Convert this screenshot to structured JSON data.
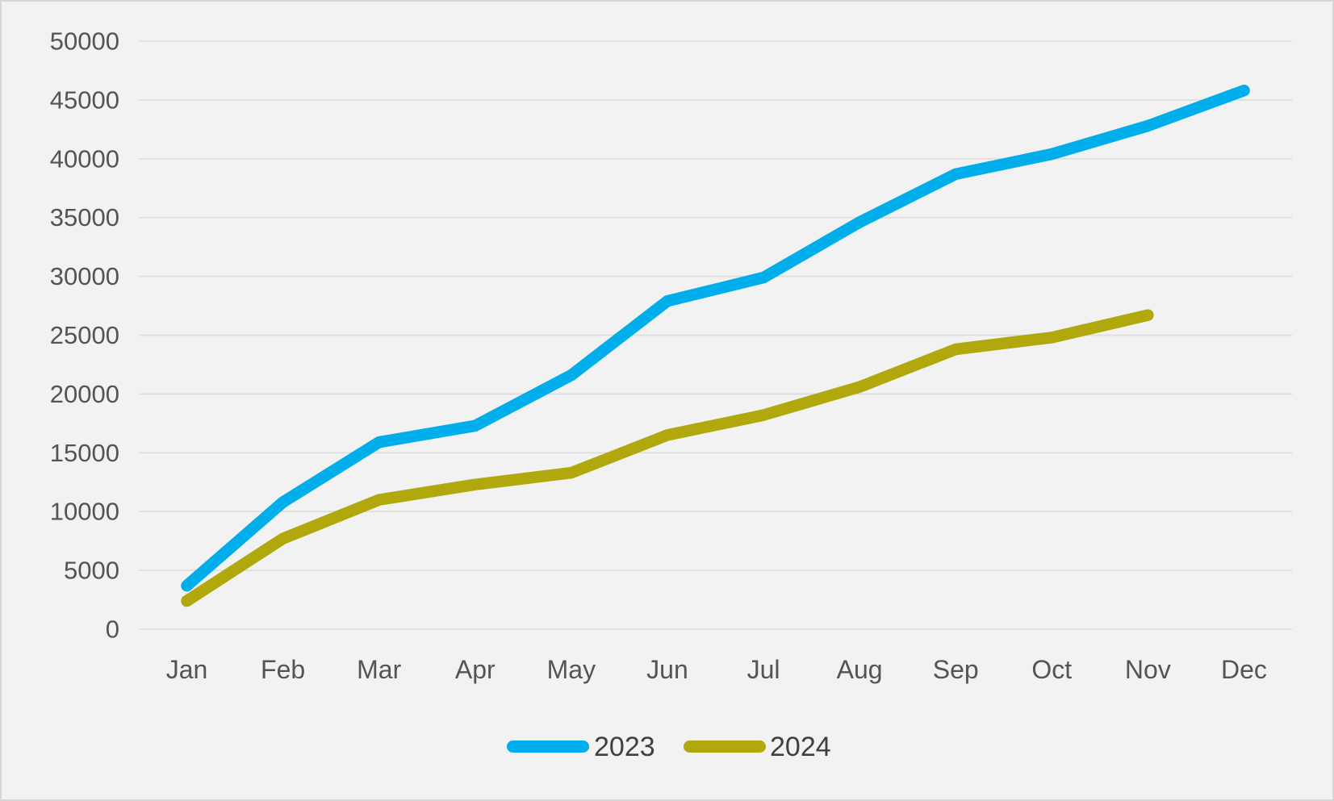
{
  "chart_data": {
    "type": "line",
    "title": "",
    "categories": [
      "Jan",
      "Feb",
      "Mar",
      "Apr",
      "May",
      "Jun",
      "Jul",
      "Aug",
      "Sep",
      "Oct",
      "Nov",
      "Dec"
    ],
    "series": [
      {
        "name": "2023",
        "color": "#00AEEB",
        "values": [
          3700,
          10800,
          15900,
          17300,
          21600,
          27900,
          29900,
          34600,
          38700,
          40400,
          42800,
          45800
        ]
      },
      {
        "name": "2024",
        "color": "#B0A80D",
        "values": [
          2400,
          7700,
          11000,
          12300,
          13300,
          16500,
          18200,
          20600,
          23800,
          24800,
          26700,
          null
        ]
      }
    ],
    "ylim": [
      0,
      50000
    ],
    "y_ticks": [
      0,
      5000,
      10000,
      15000,
      20000,
      25000,
      30000,
      35000,
      40000,
      45000,
      50000
    ],
    "grid": true,
    "legend_position": "bottom",
    "legend_entries": [
      "2023",
      "2024"
    ],
    "background": "#F2F2F2",
    "gridline_color": "#DCDCDC",
    "label_color": "#545454",
    "legend_text_color": "#404040"
  }
}
